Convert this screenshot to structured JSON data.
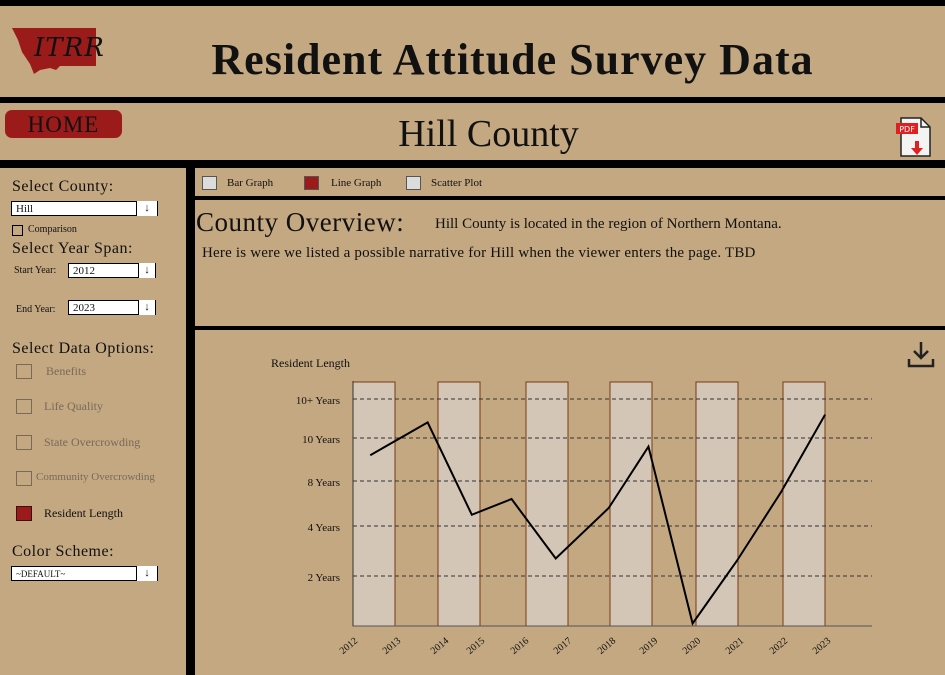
{
  "header": {
    "logo_text": "ITRR",
    "title": "Resident Attitude Survey Data"
  },
  "nav": {
    "home_label": "HOME",
    "county_title": "Hill County",
    "pdf_label": "PDF"
  },
  "sidebar": {
    "select_county_label": "Select County:",
    "county_value": "Hill",
    "comparison_label": "Comparison",
    "year_span_label": "Select Year Span:",
    "start_year_label": "Start Year:",
    "start_year_value": "2012",
    "end_year_label": "End Year:",
    "end_year_value": "2023",
    "data_options_label": "Select Data Options:",
    "data_options": [
      {
        "label": "Benefits",
        "selected": false
      },
      {
        "label": "Life Quality",
        "selected": false
      },
      {
        "label": "State Overcrowding",
        "selected": false
      },
      {
        "label": "Community Overcrowding",
        "selected": false
      },
      {
        "label": "Resident Length",
        "selected": true
      }
    ],
    "color_scheme_label": "Color Scheme:",
    "color_scheme_value": "~DEFAULT~",
    "caret": "↓"
  },
  "tabs": [
    {
      "label": "Bar Graph",
      "color": "#dcdcdc"
    },
    {
      "label": "Line Graph",
      "color": "#9b1b1b"
    },
    {
      "label": "Scatter Plot",
      "color": "#dcdcdc"
    }
  ],
  "overview": {
    "title": "County Overview:",
    "summary": "Hill County is located in the region of Northern Montana.",
    "narrative": "Here is were we listed a possible narrative for Hill when the viewer enters the page. TBD"
  },
  "colors": {
    "background": "#c4a881",
    "accent": "#9b1b1b",
    "bar_fill": "#d3c6b6",
    "bar_stroke": "#7a3a12"
  },
  "chart_data": {
    "type": "bar",
    "ylabel": "Resident Length",
    "y_categories": [
      "2 Years",
      "4 Years",
      "8 Years",
      "10 Years",
      "10+ Years"
    ],
    "x_labels": [
      "2012",
      "2013",
      "2014",
      "2015",
      "2016",
      "2017",
      "2018",
      "2019",
      "2020",
      "2021",
      "2022",
      "2023"
    ],
    "bar_count": 6,
    "line": [
      {
        "x": 2012.3,
        "y": 3.6
      },
      {
        "x": 2013.6,
        "y": 4.4
      },
      {
        "x": 2014.6,
        "y": 2.25
      },
      {
        "x": 2015.5,
        "y": 2.6
      },
      {
        "x": 2016.5,
        "y": 1.35
      },
      {
        "x": 2017.7,
        "y": 2.4
      },
      {
        "x": 2018.6,
        "y": 3.8
      },
      {
        "x": 2019.6,
        "y": 0.05
      },
      {
        "x": 2020.6,
        "y": 1.3
      },
      {
        "x": 2021.6,
        "y": 2.75
      },
      {
        "x": 2022.6,
        "y": 4.6
      }
    ],
    "grid": "dashed horizontal"
  }
}
